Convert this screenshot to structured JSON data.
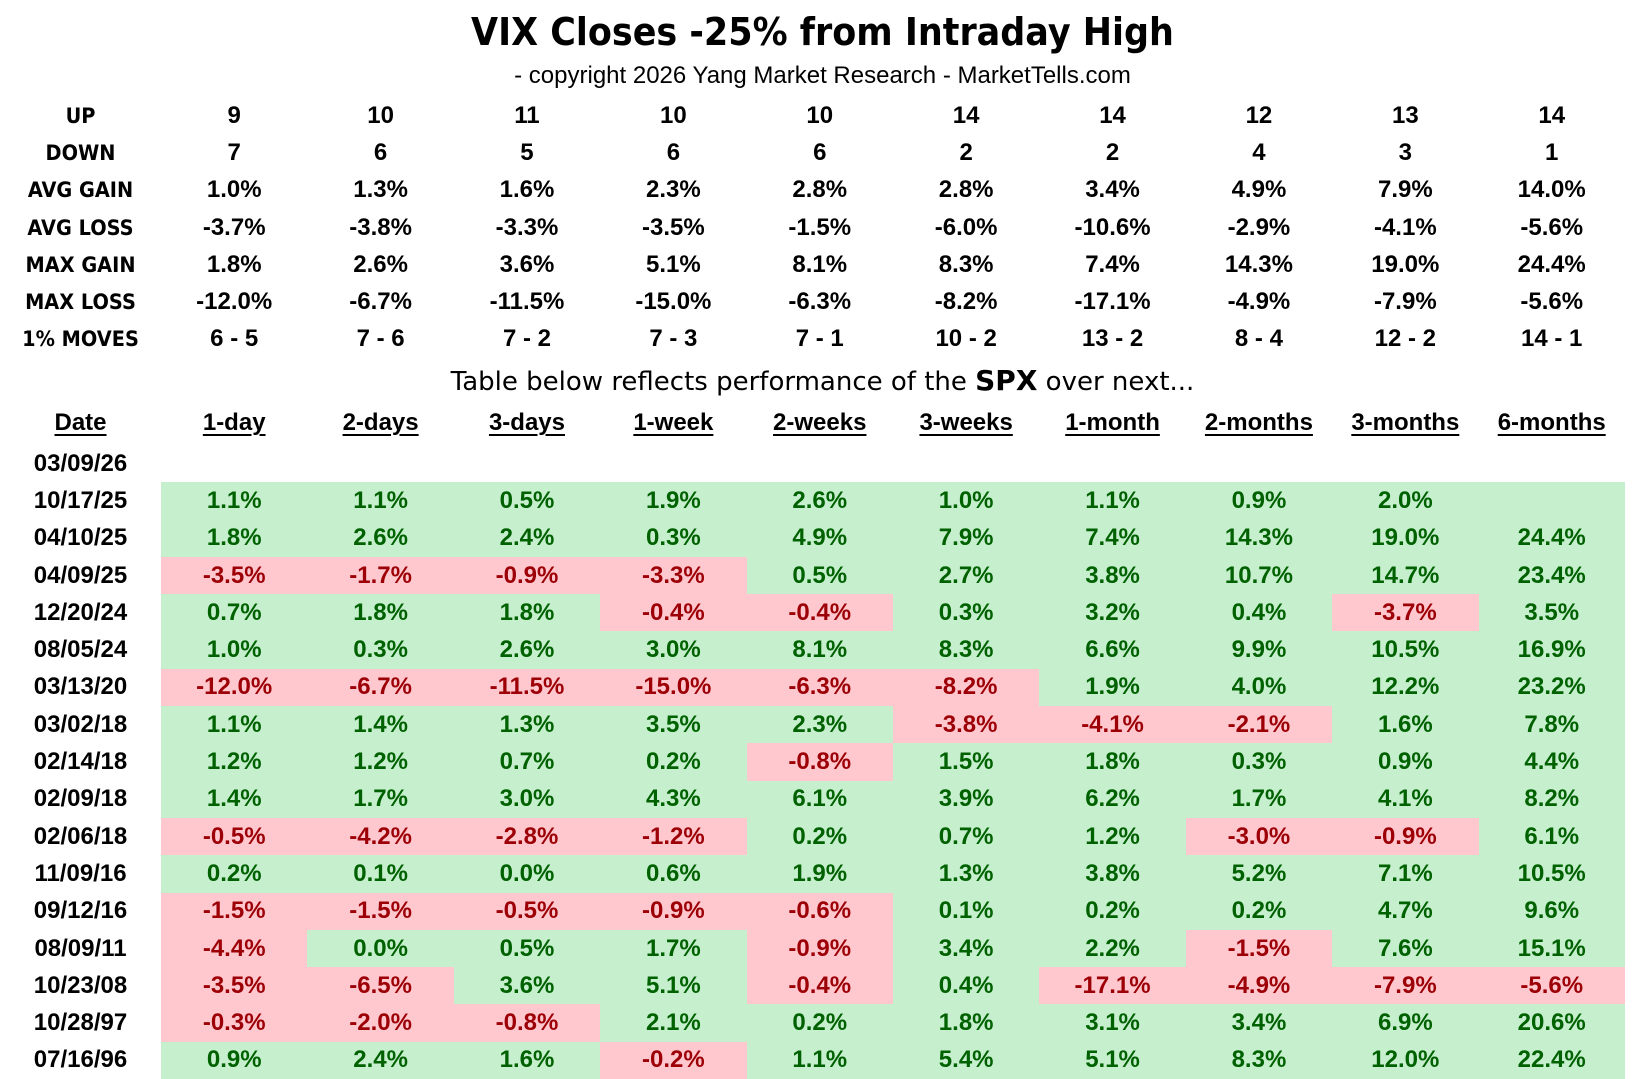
{
  "title": "VIX Closes -25% from Intraday High",
  "subtitle": "- copyright 2026 Yang Market Research - MarketTells.com",
  "note": {
    "prefix": "Table below reflects performance of the ",
    "bold": "SPX",
    "suffix": " over next..."
  },
  "colors": {
    "pos_bg": "#c6efce",
    "pos_text": "#006100",
    "neg_bg": "#ffc7ce",
    "neg_text": "#9c0006"
  },
  "chart_data": {
    "type": "table",
    "title": "VIX Closes -25% from Intraday High",
    "columns": [
      "Date",
      "1-day",
      "2-days",
      "3-days",
      "1-week",
      "2-weeks",
      "3-weeks",
      "1-month",
      "2-months",
      "3-months",
      "6-months"
    ],
    "stats": [
      {
        "label": "UP",
        "values": [
          "9",
          "10",
          "11",
          "10",
          "10",
          "14",
          "14",
          "12",
          "13",
          "14"
        ]
      },
      {
        "label": "DOWN",
        "values": [
          "7",
          "6",
          "5",
          "6",
          "6",
          "2",
          "2",
          "4",
          "3",
          "1"
        ]
      },
      {
        "label": "AVG GAIN",
        "values": [
          "1.0%",
          "1.3%",
          "1.6%",
          "2.3%",
          "2.8%",
          "2.8%",
          "3.4%",
          "4.9%",
          "7.9%",
          "14.0%"
        ]
      },
      {
        "label": "AVG LOSS",
        "values": [
          "-3.7%",
          "-3.8%",
          "-3.3%",
          "-3.5%",
          "-1.5%",
          "-6.0%",
          "-10.6%",
          "-2.9%",
          "-4.1%",
          "-5.6%"
        ]
      },
      {
        "label": "MAX GAIN",
        "values": [
          "1.8%",
          "2.6%",
          "3.6%",
          "5.1%",
          "8.1%",
          "8.3%",
          "7.4%",
          "14.3%",
          "19.0%",
          "24.4%"
        ]
      },
      {
        "label": "MAX LOSS",
        "values": [
          "-12.0%",
          "-6.7%",
          "-11.5%",
          "-15.0%",
          "-6.3%",
          "-8.2%",
          "-17.1%",
          "-4.9%",
          "-7.9%",
          "-5.6%"
        ]
      },
      {
        "label": "1% MOVES",
        "values": [
          "6 - 5",
          "7 - 6",
          "7 - 2",
          "7 - 3",
          "7 - 1",
          "10 - 2",
          "13 - 2",
          "8 - 4",
          "12 - 2",
          "14 - 1"
        ]
      }
    ],
    "rows": [
      {
        "date": "03/09/26",
        "values": null
      },
      {
        "date": "10/17/25",
        "values": [
          "1.1%",
          "1.1%",
          "0.5%",
          "1.9%",
          "2.6%",
          "1.0%",
          "1.1%",
          "0.9%",
          "2.0%",
          ""
        ]
      },
      {
        "date": "04/10/25",
        "values": [
          "1.8%",
          "2.6%",
          "2.4%",
          "0.3%",
          "4.9%",
          "7.9%",
          "7.4%",
          "14.3%",
          "19.0%",
          "24.4%"
        ]
      },
      {
        "date": "04/09/25",
        "values": [
          "-3.5%",
          "-1.7%",
          "-0.9%",
          "-3.3%",
          "0.5%",
          "2.7%",
          "3.8%",
          "10.7%",
          "14.7%",
          "23.4%"
        ]
      },
      {
        "date": "12/20/24",
        "values": [
          "0.7%",
          "1.8%",
          "1.8%",
          "-0.4%",
          "-0.4%",
          "0.3%",
          "3.2%",
          "0.4%",
          "-3.7%",
          "3.5%"
        ]
      },
      {
        "date": "08/05/24",
        "values": [
          "1.0%",
          "0.3%",
          "2.6%",
          "3.0%",
          "8.1%",
          "8.3%",
          "6.6%",
          "9.9%",
          "10.5%",
          "16.9%"
        ]
      },
      {
        "date": "03/13/20",
        "values": [
          "-12.0%",
          "-6.7%",
          "-11.5%",
          "-15.0%",
          "-6.3%",
          "-8.2%",
          "1.9%",
          "4.0%",
          "12.2%",
          "23.2%"
        ]
      },
      {
        "date": "03/02/18",
        "values": [
          "1.1%",
          "1.4%",
          "1.3%",
          "3.5%",
          "2.3%",
          "-3.8%",
          "-4.1%",
          "-2.1%",
          "1.6%",
          "7.8%"
        ]
      },
      {
        "date": "02/14/18",
        "values": [
          "1.2%",
          "1.2%",
          "0.7%",
          "0.2%",
          "-0.8%",
          "1.5%",
          "1.8%",
          "0.3%",
          "0.9%",
          "4.4%"
        ]
      },
      {
        "date": "02/09/18",
        "values": [
          "1.4%",
          "1.7%",
          "3.0%",
          "4.3%",
          "6.1%",
          "3.9%",
          "6.2%",
          "1.7%",
          "4.1%",
          "8.2%"
        ]
      },
      {
        "date": "02/06/18",
        "values": [
          "-0.5%",
          "-4.2%",
          "-2.8%",
          "-1.2%",
          "0.2%",
          "0.7%",
          "1.2%",
          "-3.0%",
          "-0.9%",
          "6.1%"
        ]
      },
      {
        "date": "11/09/16",
        "values": [
          "0.2%",
          "0.1%",
          "0.0%",
          "0.6%",
          "1.9%",
          "1.3%",
          "3.8%",
          "5.2%",
          "7.1%",
          "10.5%"
        ]
      },
      {
        "date": "09/12/16",
        "values": [
          "-1.5%",
          "-1.5%",
          "-0.5%",
          "-0.9%",
          "-0.6%",
          "0.1%",
          "0.2%",
          "0.2%",
          "4.7%",
          "9.6%"
        ]
      },
      {
        "date": "08/09/11",
        "values": [
          "-4.4%",
          "0.0%",
          "0.5%",
          "1.7%",
          "-0.9%",
          "3.4%",
          "2.2%",
          "-1.5%",
          "7.6%",
          "15.1%"
        ]
      },
      {
        "date": "10/23/08",
        "values": [
          "-3.5%",
          "-6.5%",
          "3.6%",
          "5.1%",
          "-0.4%",
          "0.4%",
          "-17.1%",
          "-4.9%",
          "-7.9%",
          "-5.6%"
        ]
      },
      {
        "date": "10/28/97",
        "values": [
          "-0.3%",
          "-2.0%",
          "-0.8%",
          "2.1%",
          "0.2%",
          "1.8%",
          "3.1%",
          "3.4%",
          "6.9%",
          "20.6%"
        ]
      },
      {
        "date": "07/16/96",
        "values": [
          "0.9%",
          "2.4%",
          "1.6%",
          "-0.2%",
          "1.1%",
          "5.4%",
          "5.1%",
          "8.3%",
          "12.0%",
          "22.4%"
        ]
      }
    ]
  }
}
